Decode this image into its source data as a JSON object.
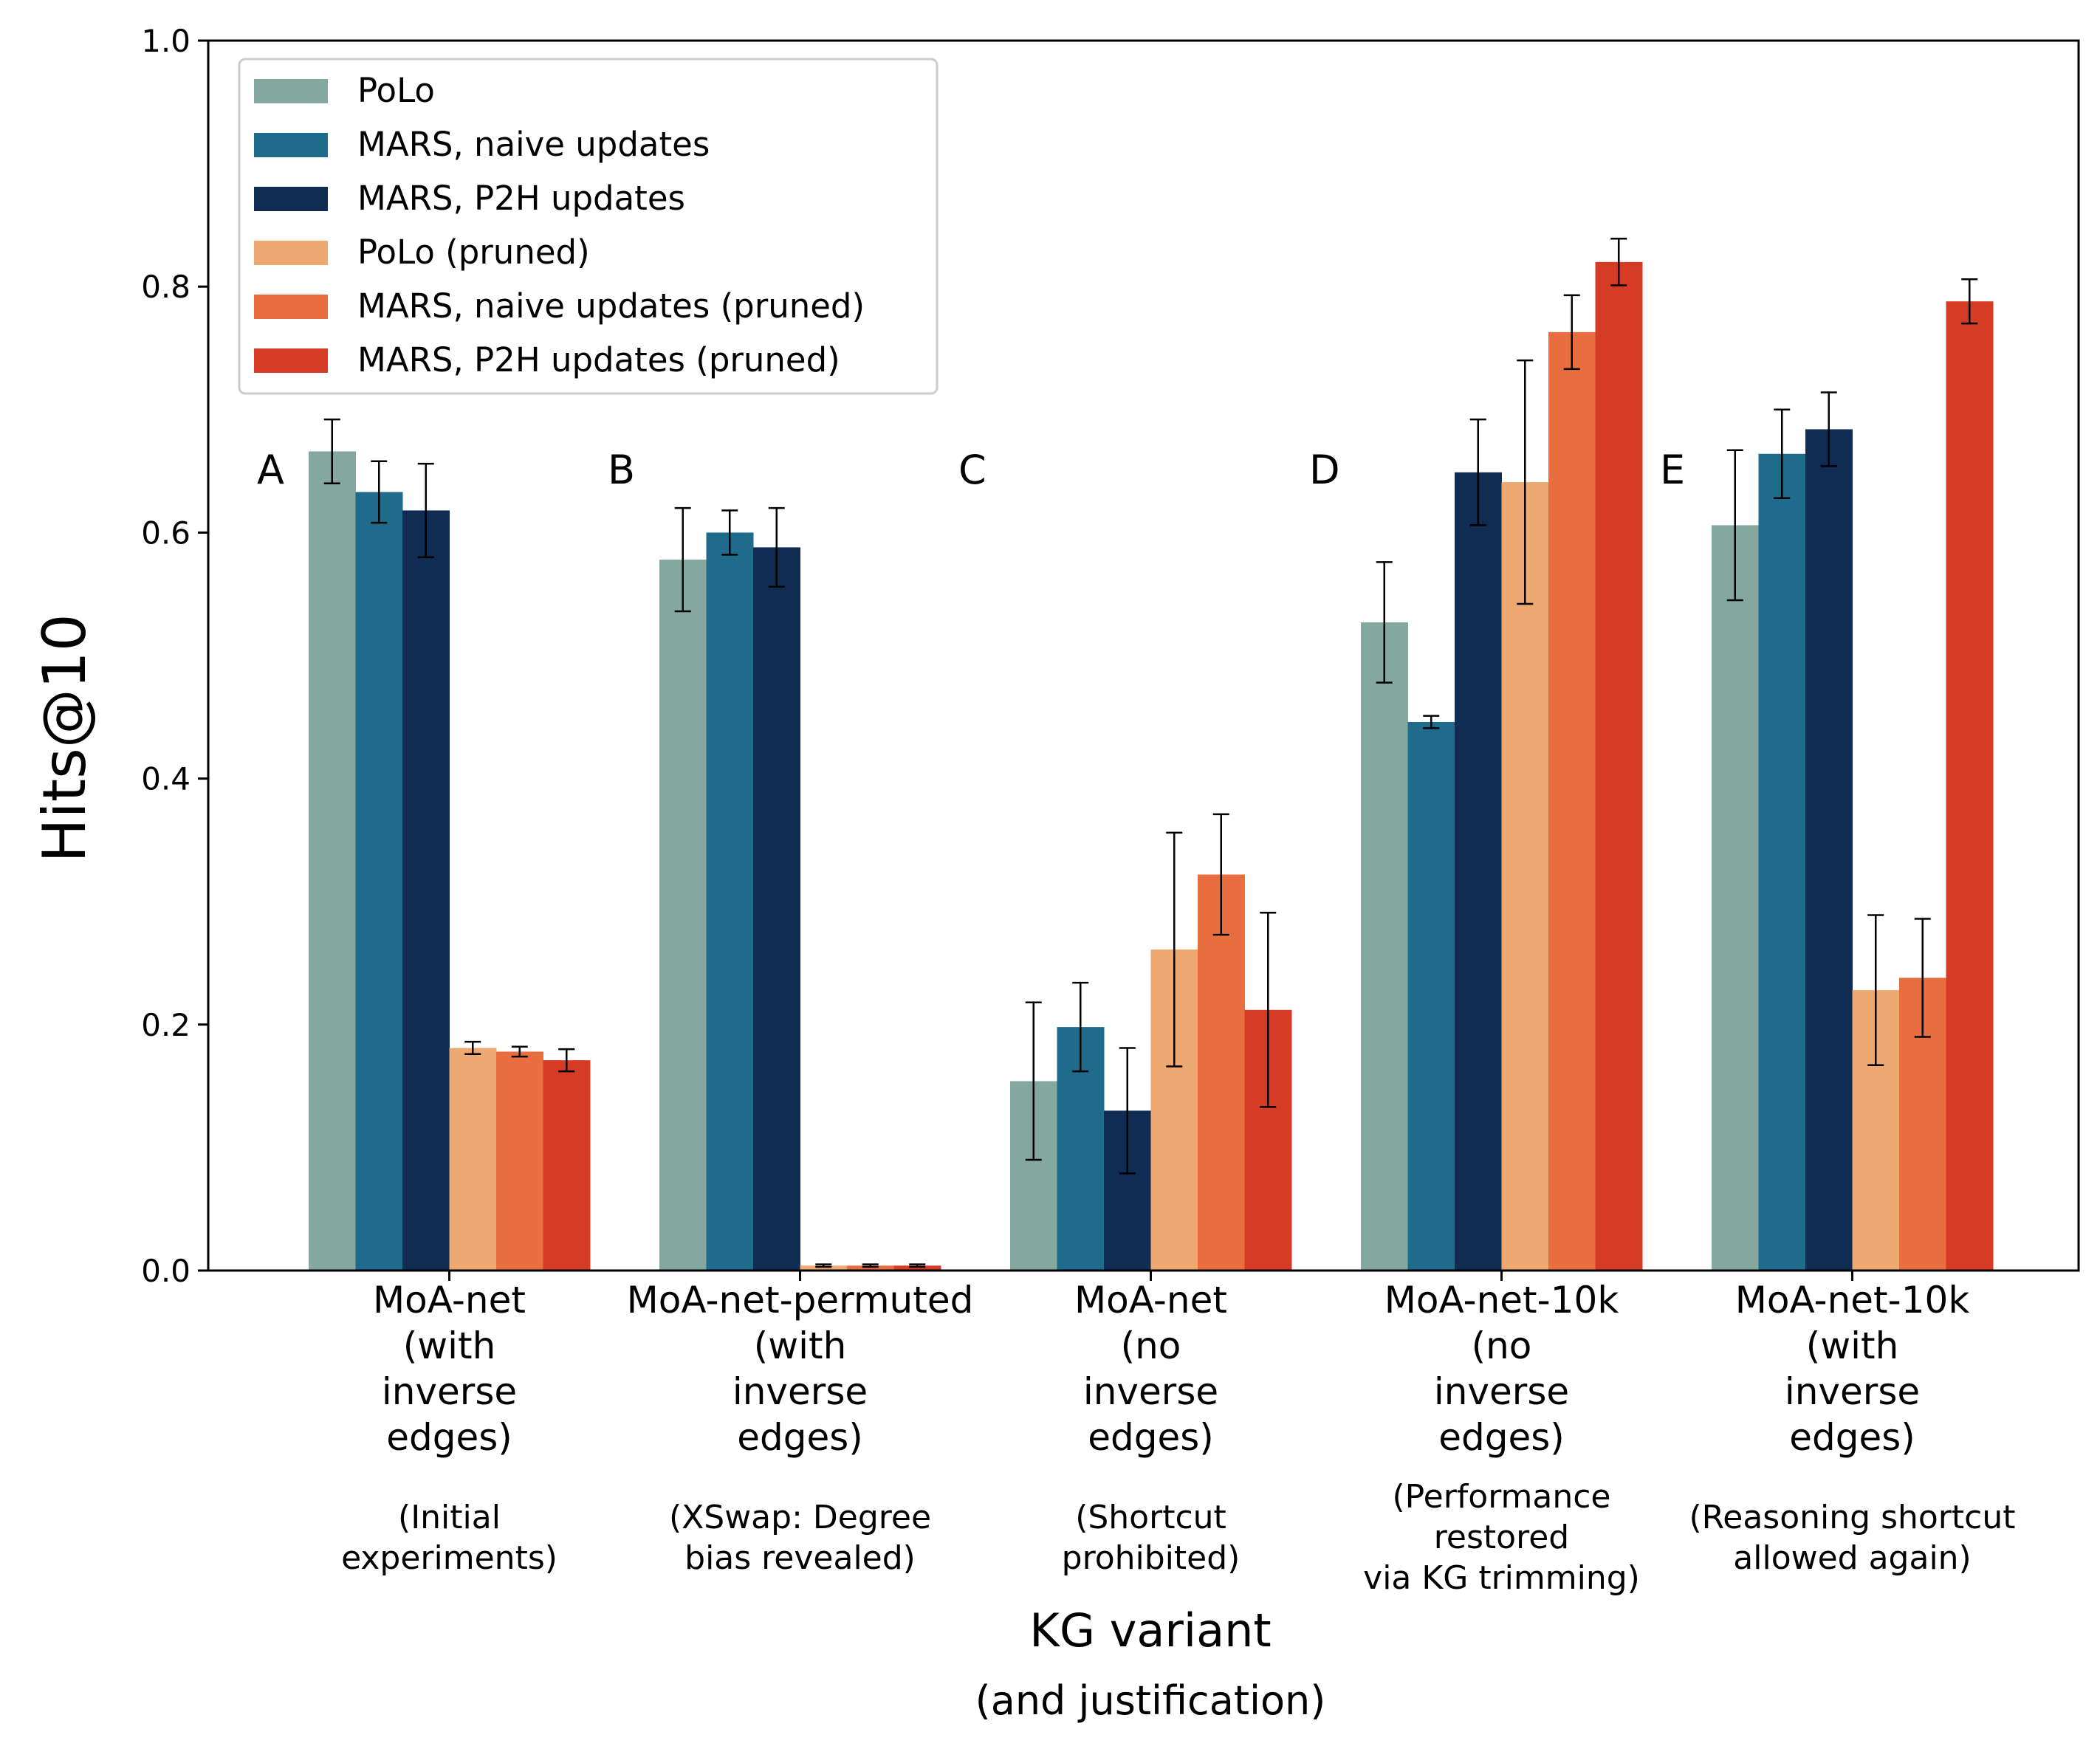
{
  "chart_data": {
    "type": "bar",
    "title": "",
    "xlabel": "KG variant",
    "xlabel_sub": "(and justification)",
    "ylabel": "Hits@10",
    "ylim": [
      0,
      1.0
    ],
    "yticks": [
      "0.0",
      "0.2",
      "0.4",
      "0.6",
      "0.8",
      "1.0"
    ],
    "grid": false,
    "legend_position": "top-left",
    "categories": [
      {
        "letter": "A",
        "label": [
          "MoA-net",
          "(with",
          "inverse",
          "edges)"
        ],
        "justification": [
          "(Initial",
          "experiments)"
        ]
      },
      {
        "letter": "B",
        "label": [
          "MoA-net-permuted",
          "(with",
          "inverse",
          "edges)"
        ],
        "justification": [
          "(XSwap: Degree",
          "bias revealed)"
        ]
      },
      {
        "letter": "C",
        "label": [
          "MoA-net",
          "(no",
          "inverse",
          "edges)"
        ],
        "justification": [
          "(Shortcut",
          "prohibited)"
        ]
      },
      {
        "letter": "D",
        "label": [
          "MoA-net-10k",
          "(no",
          "inverse",
          "edges)"
        ],
        "justification": [
          "(Performance",
          "restored",
          "via KG trimming)"
        ]
      },
      {
        "letter": "E",
        "label": [
          "MoA-net-10k",
          "(with",
          "inverse",
          "edges)"
        ],
        "justification": [
          "(Reasoning shortcut",
          "allowed again)"
        ]
      }
    ],
    "series": [
      {
        "name": "PoLo",
        "color": "#84a8a0",
        "values": [
          0.666,
          0.578,
          0.154,
          0.527,
          0.606
        ],
        "err": [
          0.026,
          0.042,
          0.064,
          0.049,
          0.061
        ]
      },
      {
        "name": "MARS, naive updates",
        "color": "#1f6b8b",
        "values": [
          0.633,
          0.6,
          0.198,
          0.446,
          0.664
        ],
        "err": [
          0.025,
          0.018,
          0.036,
          0.005,
          0.036
        ]
      },
      {
        "name": "MARS, P2H updates",
        "color": "#102c52",
        "values": [
          0.618,
          0.588,
          0.13,
          0.649,
          0.684
        ],
        "err": [
          0.038,
          0.032,
          0.051,
          0.043,
          0.03
        ]
      },
      {
        "name": "PoLo (pruned)",
        "color": "#eea871",
        "values": [
          0.181,
          0.004,
          0.261,
          0.641,
          0.228
        ],
        "err": [
          0.005,
          0.001,
          0.095,
          0.099,
          0.061
        ]
      },
      {
        "name": "MARS, naive updates (pruned)",
        "color": "#e96e3f",
        "values": [
          0.178,
          0.004,
          0.322,
          0.763,
          0.238
        ],
        "err": [
          0.004,
          0.001,
          0.049,
          0.03,
          0.048
        ]
      },
      {
        "name": "MARS, P2H updates (pruned)",
        "color": "#d63b25",
        "values": [
          0.171,
          0.004,
          0.212,
          0.82,
          0.788
        ],
        "err": [
          0.009,
          0.001,
          0.079,
          0.019,
          0.018
        ]
      }
    ]
  }
}
